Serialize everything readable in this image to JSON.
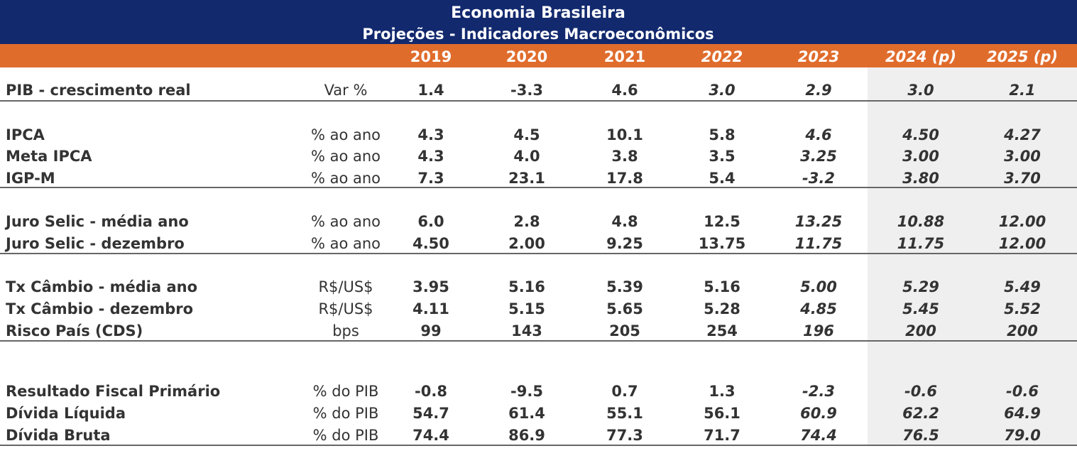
{
  "header": {
    "title": "Economia Brasileira",
    "subtitle": "Projeções - Indicadores Macroeconômicos"
  },
  "table": {
    "columns": [
      "2019",
      "2020",
      "2021",
      "2022",
      "2023",
      "2024 (p)",
      "2025 (p)"
    ],
    "rows": [
      [
        "PIB - crescimento real",
        "Var %",
        "1.4",
        "-3.3",
        "4.6",
        "3.0",
        "2.9",
        "3.0",
        "2.1"
      ],
      [
        "IPCA",
        "% ao ano",
        "4.3",
        "4.5",
        "10.1",
        "5.8",
        "4.6",
        "4.50",
        "4.27"
      ],
      [
        "Meta IPCA",
        "% ao ano",
        "4.3",
        "4.0",
        "3.8",
        "3.5",
        "3.25",
        "3.00",
        "3.00"
      ],
      [
        "IGP-M",
        "% ao ano",
        "7.3",
        "23.1",
        "17.8",
        "5.4",
        "-3.2",
        "3.80",
        "3.70"
      ],
      [
        "Juro Selic - média ano",
        "% ao ano",
        "6.0",
        "2.8",
        "4.8",
        "12.5",
        "13.25",
        "10.88",
        "12.00"
      ],
      [
        "Juro Selic - dezembro",
        "% ao ano",
        "4.50",
        "2.00",
        "9.25",
        "13.75",
        "11.75",
        "11.75",
        "12.00"
      ],
      [
        "Tx Câmbio - média ano",
        "R$/US$",
        "3.95",
        "5.16",
        "5.39",
        "5.16",
        "5.00",
        "5.29",
        "5.49"
      ],
      [
        "Tx Câmbio - dezembro",
        "R$/US$",
        "4.11",
        "5.15",
        "5.65",
        "5.28",
        "4.85",
        "5.45",
        "5.52"
      ],
      [
        "Risco País (CDS)",
        "bps",
        "99",
        "143",
        "205",
        "254",
        "196",
        "200",
        "200"
      ],
      [
        "Resultado Fiscal Primário",
        "% do PIB",
        "-0.8",
        "-9.5",
        "0.7",
        "1.3",
        "-2.3",
        "-0.6",
        "-0.6"
      ],
      [
        "Dívida Líquida",
        "% do PIB",
        "54.7",
        "61.4",
        "55.1",
        "56.1",
        "60.9",
        "62.2",
        "64.9"
      ],
      [
        "Dívida Bruta",
        "% do PIB",
        "74.4",
        "86.9",
        "77.3",
        "71.7",
        "74.4",
        "76.5",
        "79.0"
      ]
    ]
  }
}
